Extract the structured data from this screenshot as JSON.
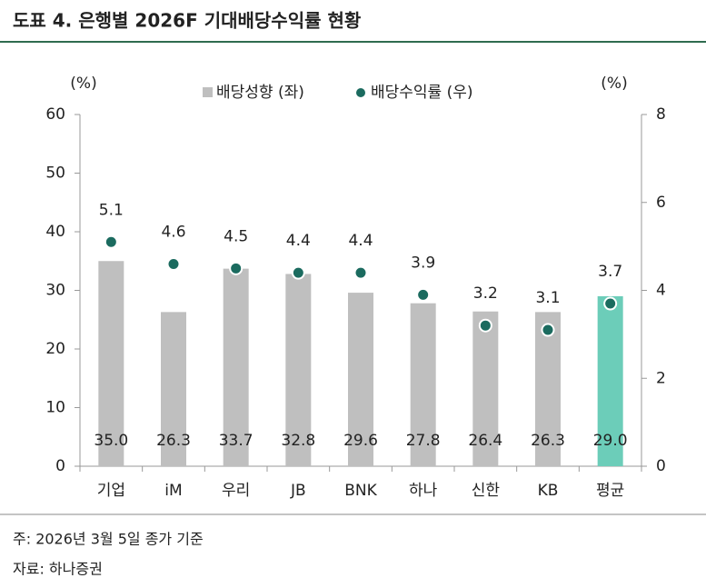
{
  "chart_data": {
    "type": "bar-dot",
    "title": "도표 4. 은행별 2026F 기대배당수익률 현황",
    "y_unit": "(%)",
    "y2_unit": "(%)",
    "categories": [
      "기업",
      "iM",
      "우리",
      "JB",
      "BNK",
      "하나",
      "신한",
      "KB",
      "평균"
    ],
    "series": [
      {
        "name": "배당성향 (좌)",
        "color": "#bfbfbf",
        "colors": [
          "#bfbfbf",
          "#bfbfbf",
          "#bfbfbf",
          "#bfbfbf",
          "#bfbfbf",
          "#bfbfbf",
          "#bfbfbf",
          "#bfbfbf",
          "#6ccdb9"
        ],
        "values": [
          35.0,
          26.3,
          33.7,
          32.8,
          29.6,
          27.8,
          26.4,
          26.3,
          29.0
        ],
        "value_labels": [
          "35.0",
          "26.3",
          "33.7",
          "32.8",
          "29.6",
          "27.8",
          "26.4",
          "26.3",
          "29.0"
        ]
      },
      {
        "name": "배당수익률 (우)",
        "color": "#1b6b5f",
        "axis": "y2",
        "values": [
          5.1,
          4.6,
          4.5,
          4.4,
          4.4,
          3.9,
          3.2,
          3.1,
          3.7
        ]
      }
    ],
    "ylim": [
      0,
      60
    ],
    "yticks": [
      0,
      10,
      20,
      30,
      40,
      50,
      60
    ],
    "y2lim": [
      0,
      8
    ],
    "y2ticks": [
      0,
      2,
      4,
      6,
      8
    ],
    "grid": false,
    "note": "주: 2026년 3월 5일 종가 기준",
    "source": "자료: 하나증권"
  }
}
